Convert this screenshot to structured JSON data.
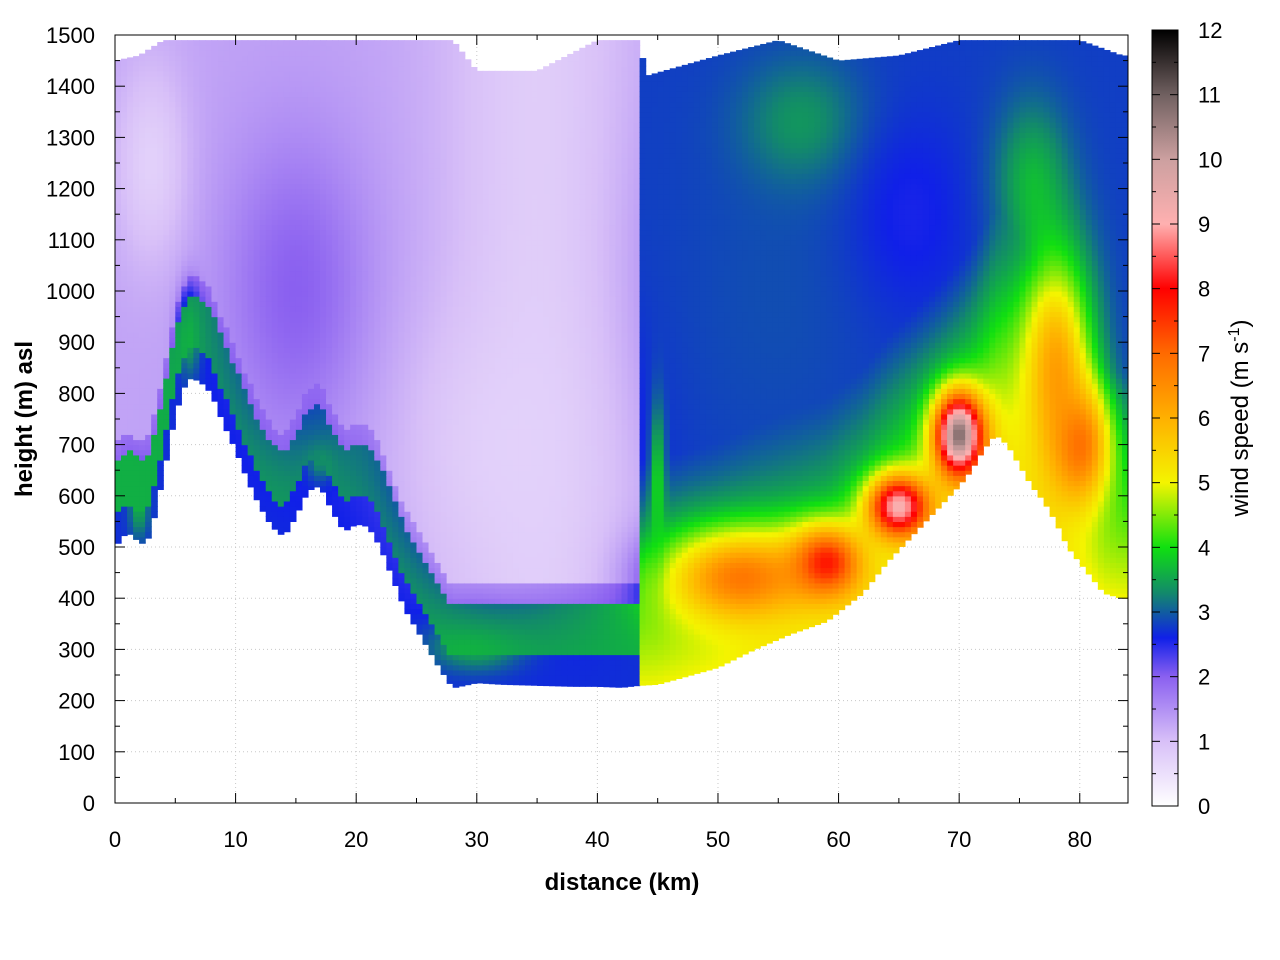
{
  "chart_data": {
    "type": "heatmap",
    "title": "",
    "xlabel": "distance (km)",
    "ylabel": "height (m) asl",
    "xlim": [
      0,
      84
    ],
    "ylim": [
      0,
      1500
    ],
    "x_ticks": [
      0,
      10,
      20,
      30,
      40,
      50,
      60,
      70,
      80
    ],
    "y_ticks": [
      0,
      100,
      200,
      300,
      400,
      500,
      600,
      700,
      800,
      900,
      1000,
      1100,
      1200,
      1300,
      1400,
      1500
    ],
    "grid": true,
    "colorbar": {
      "label": "wind speed (m s",
      "label_sup": "-1",
      "label_end": ")",
      "range": [
        0,
        12
      ],
      "ticks": [
        0,
        1,
        2,
        3,
        4,
        5,
        6,
        7,
        8,
        9,
        10,
        11,
        12
      ],
      "stops": [
        {
          "v": 0,
          "c": "#ffffff"
        },
        {
          "v": 1,
          "c": "#d8c0f8"
        },
        {
          "v": 2,
          "c": "#8a60f0"
        },
        {
          "v": 2.6,
          "c": "#1020e8"
        },
        {
          "v": 3.3,
          "c": "#128a6a"
        },
        {
          "v": 4,
          "c": "#10e010"
        },
        {
          "v": 5,
          "c": "#f4f400"
        },
        {
          "v": 6,
          "c": "#ffb000"
        },
        {
          "v": 7,
          "c": "#ff6a00"
        },
        {
          "v": 8,
          "c": "#ff0000"
        },
        {
          "v": 9,
          "c": "#ffb0b0"
        },
        {
          "v": 10,
          "c": "#cca0a0"
        },
        {
          "v": 11,
          "c": "#706060"
        },
        {
          "v": 12,
          "c": "#000000"
        }
      ]
    },
    "terrain": {
      "x": [
        0,
        1,
        2,
        2.5,
        3,
        4,
        5,
        6,
        7,
        8,
        9,
        10,
        11,
        12,
        13,
        14,
        15,
        16,
        17,
        18,
        19,
        20,
        21,
        22,
        23,
        24,
        25,
        26,
        27,
        28,
        29,
        30,
        32,
        35,
        38,
        40,
        42,
        43.5,
        45,
        47,
        50,
        53,
        56,
        59,
        62,
        64,
        66,
        68,
        70,
        71,
        72,
        73,
        74,
        75,
        76,
        77,
        78,
        79,
        80,
        81,
        82,
        83.5
      ],
      "y": [
        500,
        530,
        510,
        505,
        530,
        640,
        760,
        830,
        825,
        800,
        740,
        690,
        630,
        580,
        540,
        520,
        560,
        610,
        620,
        570,
        530,
        545,
        540,
        500,
        440,
        380,
        340,
        300,
        260,
        225,
        230,
        235,
        232,
        230,
        228,
        228,
        226,
        230,
        232,
        245,
        265,
        300,
        330,
        355,
        410,
        470,
        520,
        570,
        620,
        650,
        690,
        720,
        700,
        660,
        620,
        590,
        550,
        500,
        470,
        440,
        410,
        400
      ]
    },
    "upper_edge": {
      "x": [
        0,
        2,
        4,
        6,
        8,
        10,
        15,
        20,
        25,
        28,
        30,
        35,
        40,
        43.5,
        44,
        50,
        55,
        60,
        65,
        70,
        75,
        80,
        83.5
      ],
      "y": [
        1450,
        1460,
        1490,
        1490,
        1490,
        1490,
        1490,
        1490,
        1490,
        1490,
        1430,
        1430,
        1490,
        1490,
        1420,
        1460,
        1490,
        1450,
        1460,
        1490,
        1490,
        1490,
        1460
      ]
    },
    "wind_field": {
      "x": [
        0,
        2,
        4,
        6,
        8,
        10,
        12,
        14,
        16,
        18,
        20,
        22,
        24,
        26,
        28,
        30,
        32,
        34,
        36,
        38,
        40,
        42,
        43.5,
        44,
        45,
        46,
        48,
        50,
        52,
        54,
        56,
        58,
        60,
        62,
        64,
        66,
        68,
        70,
        71,
        72,
        73,
        74,
        76,
        78,
        80,
        82,
        83.5
      ],
      "y": [
        200,
        250,
        300,
        350,
        400,
        450,
        500,
        550,
        600,
        650,
        700,
        750,
        800,
        850,
        900,
        950,
        1000,
        1050,
        1100,
        1150,
        1200,
        1250,
        1300,
        1350,
        1400,
        1450,
        1500
      ],
      "features": [
        {
          "shape": "band",
          "x0": 0,
          "x1": 43.5,
          "ylo_above_terrain": 0,
          "thickness": 60,
          "value": 2.7
        },
        {
          "shape": "band",
          "x0": 0,
          "x1": 43.5,
          "ylo_above_terrain": 0,
          "thickness": 160,
          "value": 2.3
        },
        {
          "shape": "band",
          "x0": 0,
          "x1": 43.5,
          "ylo_above_terrain": 60,
          "thickness": 100,
          "value": 3.6
        },
        {
          "shape": "blob",
          "x": 30,
          "y": 310,
          "rx": 4,
          "ry": 50,
          "value": 3.8
        },
        {
          "shape": "blob",
          "x": 6.2,
          "y": 920,
          "rx": 0.9,
          "ry": 80,
          "value": 3.8
        },
        {
          "shape": "blob",
          "x": 2,
          "y": 580,
          "rx": 0.8,
          "ry": 60,
          "value": 3.6
        },
        {
          "shape": "blob",
          "x": 17,
          "y": 670,
          "rx": 1.2,
          "ry": 40,
          "value": 3.8
        },
        {
          "shape": "blob",
          "x": 15,
          "y": 1000,
          "rx": 6,
          "ry": 300,
          "value": 2.0
        },
        {
          "shape": "blob",
          "x": 32,
          "y": 700,
          "rx": 8,
          "ry": 250,
          "value": 0.7
        },
        {
          "shape": "blob",
          "x": 3,
          "y": 1250,
          "rx": 3,
          "ry": 200,
          "value": 0.6
        },
        {
          "shape": "blob",
          "x": 55,
          "y": 1000,
          "rx": 8,
          "ry": 350,
          "value": 2.9
        },
        {
          "shape": "blob",
          "x": 57,
          "y": 1330,
          "rx": 5,
          "ry": 120,
          "value": 3.4
        },
        {
          "shape": "blob",
          "x": 66,
          "y": 1150,
          "rx": 5,
          "ry": 200,
          "value": 2.5
        },
        {
          "shape": "blob",
          "x": 76,
          "y": 1220,
          "rx": 3,
          "ry": 150,
          "value": 3.6
        },
        {
          "shape": "blob",
          "x": 52,
          "y": 440,
          "rx": 6,
          "ry": 90,
          "value": 6.8
        },
        {
          "shape": "blob",
          "x": 59,
          "y": 470,
          "rx": 3,
          "ry": 70,
          "value": 7.8
        },
        {
          "shape": "blob",
          "x": 70,
          "y": 720,
          "rx": 2,
          "ry": 80,
          "value": 10.8
        },
        {
          "shape": "blob",
          "x": 65,
          "y": 580,
          "rx": 2.5,
          "ry": 60,
          "value": 9.2
        },
        {
          "shape": "blob",
          "x": 78,
          "y": 850,
          "rx": 3,
          "ry": 220,
          "value": 6.2
        },
        {
          "shape": "blob",
          "x": 80,
          "y": 700,
          "rx": 2.5,
          "ry": 120,
          "value": 6.9
        },
        {
          "shape": "blob",
          "x": 45,
          "y": 620,
          "rx": 0.6,
          "ry": 150,
          "value": 4.0
        }
      ]
    }
  }
}
